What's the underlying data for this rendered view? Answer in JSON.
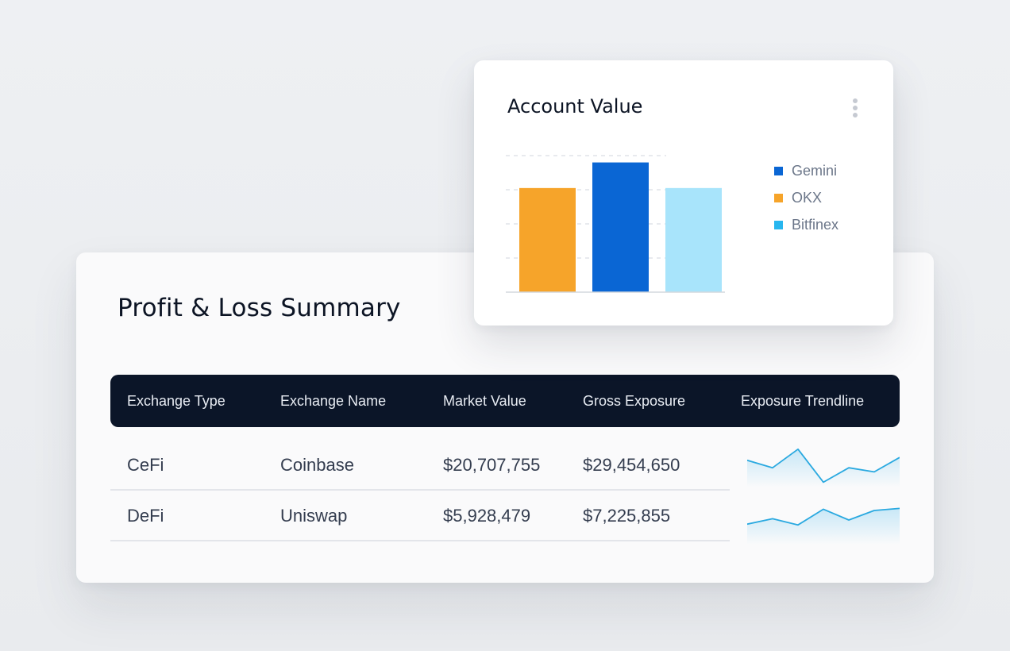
{
  "pl": {
    "title": "Profit & Loss Summary",
    "columns": [
      "Exchange Type",
      "Exchange Name",
      "Market Value",
      "Gross Exposure",
      "Exposure Trendline"
    ],
    "rows": [
      {
        "type": "CeFi",
        "name": "Coinbase",
        "market_value": "$20,707,755",
        "gross_exposure": "$29,454,650"
      },
      {
        "type": "DeFi",
        "name": "Uniswap",
        "market_value": "$5,928,479",
        "gross_exposure": "$7,225,855"
      }
    ],
    "trendlines": [
      [
        0.58,
        0.4,
        0.85,
        0.05,
        0.4,
        0.3,
        0.65
      ],
      [
        0.42,
        0.55,
        0.4,
        0.78,
        0.52,
        0.75,
        0.8
      ]
    ],
    "trend_color": "#2aa9e0"
  },
  "account_value": {
    "title": "Account Value",
    "menu_icon": "kebab-menu-icon",
    "legend": [
      {
        "label": "Gemini",
        "color": "#0a66d4"
      },
      {
        "label": "OKX",
        "color": "#f6a42a"
      },
      {
        "label": "Bitfinex",
        "color": "#27b6ef"
      }
    ]
  },
  "chart_data": {
    "type": "bar",
    "title": "Account Value",
    "categories": [
      "OKX",
      "Gemini",
      "Bitfinex"
    ],
    "values": [
      3.05,
      3.8,
      3.05
    ],
    "colors": [
      "#f6a42a",
      "#0a66d4",
      "#a8e4fb"
    ],
    "ylim": [
      0,
      4
    ],
    "grid": true,
    "legend_position": "right"
  }
}
